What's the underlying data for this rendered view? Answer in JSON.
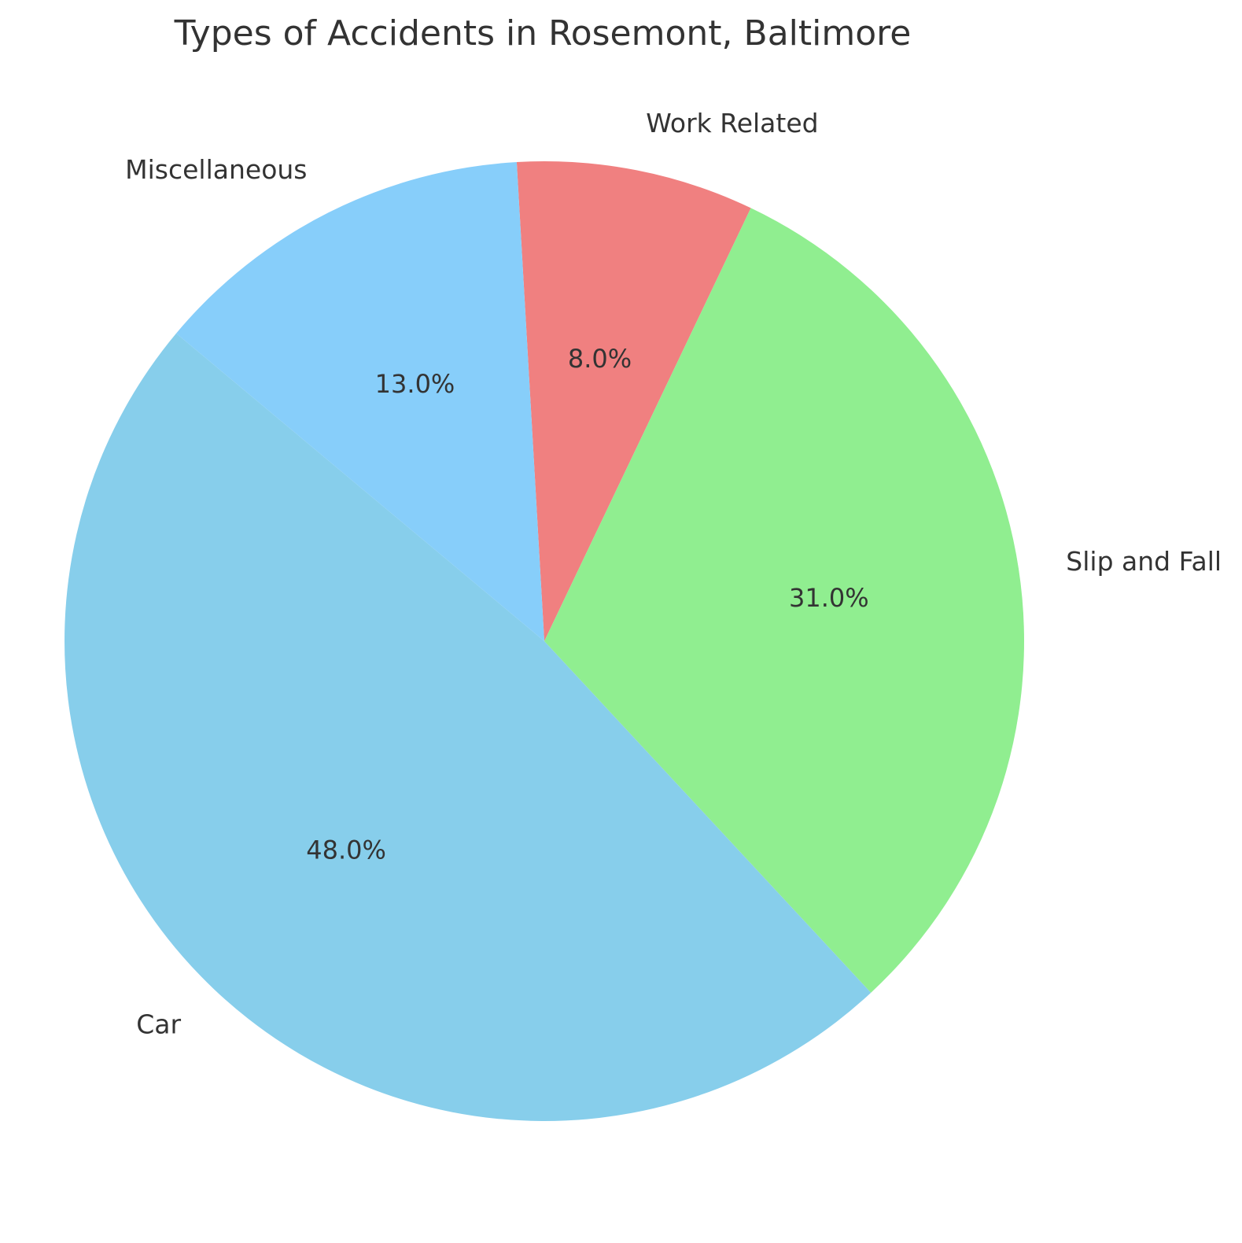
{
  "chart_data": {
    "type": "pie",
    "title": "Types of Accidents in Rosemont, Baltimore",
    "categories": [
      "Work Related",
      "Slip and Fall",
      "Car",
      "Miscellaneous"
    ],
    "values": [
      8.0,
      31.0,
      48.0,
      13.0
    ],
    "pct_labels": [
      "8.0%",
      "31.0%",
      "48.0%",
      "13.0%"
    ],
    "colors": [
      "#F08080",
      "#90EE90",
      "#87CEEB",
      "#87CEFA"
    ],
    "start_angle_deg": 93.3,
    "direction": "clockwise",
    "label_distance": 1.1,
    "pct_distance": 0.6,
    "text_color": "#333333",
    "background": "#ffffff",
    "legend": "none"
  }
}
